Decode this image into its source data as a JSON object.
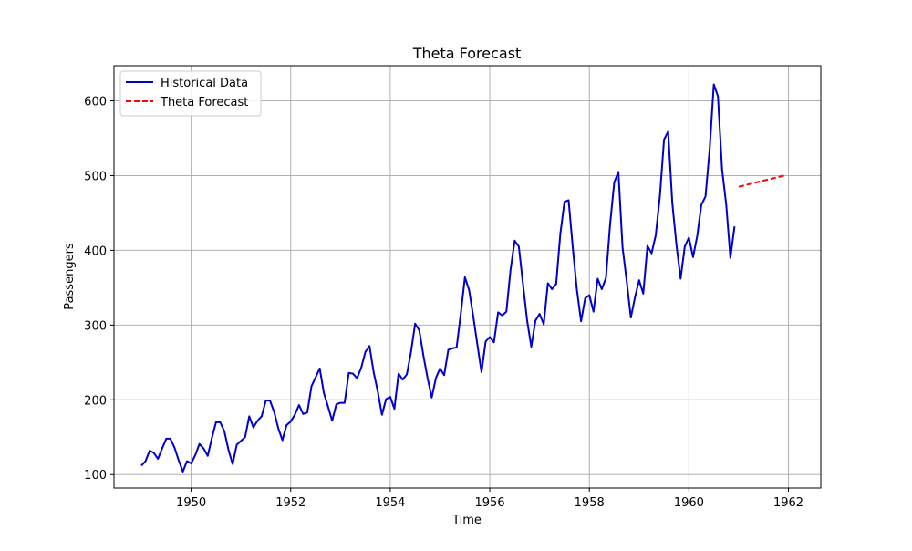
{
  "chart_data": {
    "type": "line",
    "title": "Theta Forecast",
    "xlabel": "Time",
    "ylabel": "Passengers",
    "xlim": [
      1948.45,
      1962.65
    ],
    "ylim": [
      82,
      647
    ],
    "xticks": [
      1950,
      1952,
      1954,
      1956,
      1958,
      1960,
      1962
    ],
    "yticks": [
      100,
      200,
      300,
      400,
      500,
      600
    ],
    "grid": true,
    "legend_position": "upper-left",
    "series": [
      {
        "name": "Historical Data",
        "color": "#0000cc",
        "style": "solid",
        "x_start": 1949,
        "x_step": 0.0833333,
        "values": [
          112,
          118,
          132,
          129,
          121,
          135,
          148,
          148,
          136,
          119,
          104,
          118,
          115,
          126,
          141,
          135,
          125,
          149,
          170,
          170,
          158,
          133,
          114,
          140,
          145,
          150,
          178,
          163,
          172,
          178,
          199,
          199,
          184,
          162,
          146,
          166,
          171,
          180,
          193,
          181,
          183,
          218,
          230,
          242,
          209,
          191,
          172,
          194,
          196,
          196,
          236,
          235,
          229,
          243,
          264,
          272,
          237,
          211,
          180,
          201,
          204,
          188,
          235,
          227,
          234,
          264,
          302,
          293,
          259,
          229,
          203,
          229,
          242,
          233,
          267,
          269,
          270,
          315,
          364,
          347,
          312,
          274,
          237,
          278,
          284,
          277,
          317,
          313,
          318,
          374,
          413,
          405,
          355,
          306,
          271,
          306,
          315,
          301,
          356,
          348,
          355,
          422,
          465,
          467,
          404,
          347,
          305,
          336,
          340,
          318,
          362,
          348,
          363,
          435,
          491,
          505,
          404,
          359,
          310,
          337,
          360,
          342,
          406,
          396,
          420,
          472,
          548,
          559,
          463,
          407,
          362,
          405,
          417,
          391,
          419,
          461,
          472,
          535,
          622,
          606,
          508,
          461,
          390,
          432
        ]
      },
      {
        "name": "Theta Forecast",
        "color": "#ff0000",
        "style": "dashed",
        "x_start": 1961,
        "x_step": 0.0833333,
        "values": [
          485.1,
          486.4,
          487.8,
          489.2,
          490.5,
          491.9,
          493.3,
          494.6,
          496.0,
          497.3,
          498.7,
          500.1
        ]
      }
    ]
  }
}
